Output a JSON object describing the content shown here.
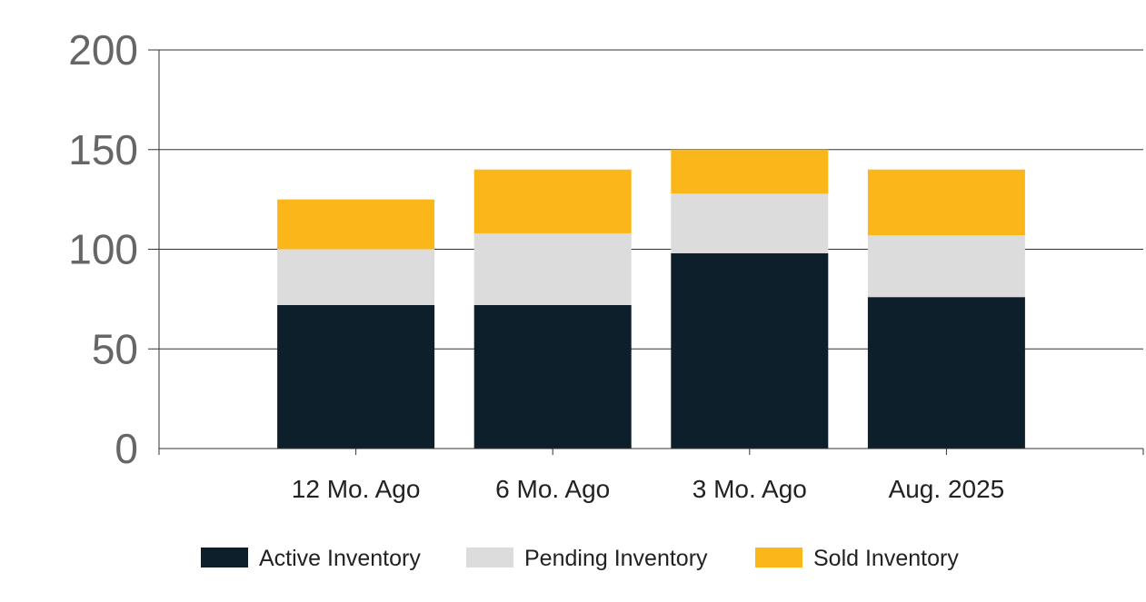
{
  "chart_data": {
    "type": "bar",
    "stacked": true,
    "categories": [
      "12 Mo. Ago",
      "6 Mo. Ago",
      "3 Mo. Ago",
      "Aug. 2025"
    ],
    "series": [
      {
        "name": "Active Inventory",
        "color": "#0d1f2b",
        "values": [
          72,
          72,
          98,
          76
        ]
      },
      {
        "name": "Pending Inventory",
        "color": "#dcdcdc",
        "values": [
          28,
          36,
          30,
          31
        ]
      },
      {
        "name": "Sold Inventory",
        "color": "#fbb619",
        "values": [
          25,
          32,
          22,
          33
        ]
      }
    ],
    "yticks": [
      "0",
      "50",
      "100",
      "150",
      "200"
    ],
    "ylim": [
      0,
      200
    ],
    "grid": true,
    "legend_position": "bottom"
  }
}
